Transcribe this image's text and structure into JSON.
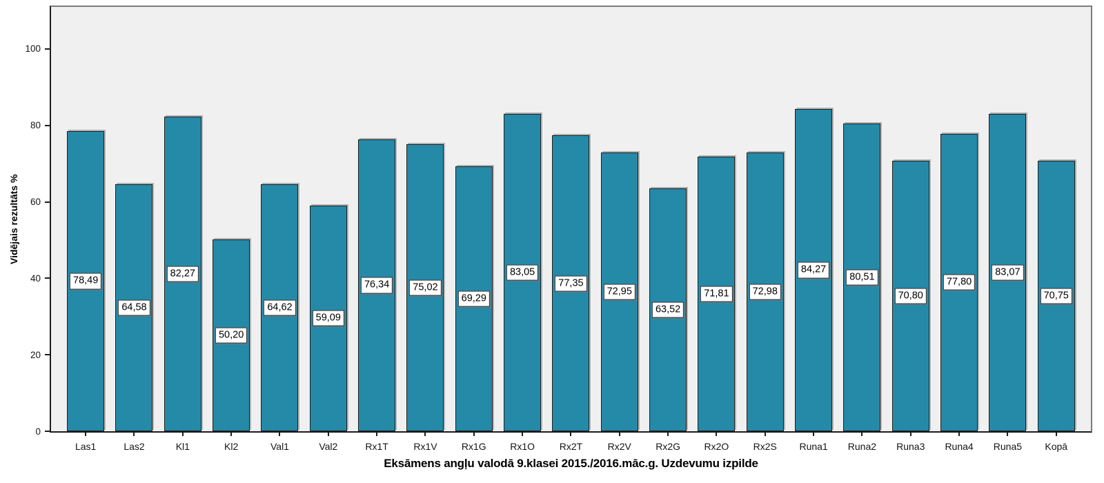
{
  "chart_data": {
    "type": "bar",
    "title": "",
    "xlabel": "Eksāmens angļu valodā 9.klasei 2015./2016.māc.g. Uzdevumu izpilde",
    "ylabel": "Vidējais rezultāts %",
    "categories": [
      "Las1",
      "Las2",
      "Kl1",
      "Kl2",
      "Val1",
      "Val2",
      "Rx1T",
      "Rx1V",
      "Rx1G",
      "Rx1O",
      "Rx2T",
      "Rx2V",
      "Rx2G",
      "Rx2O",
      "Rx2S",
      "Runa1",
      "Runa2",
      "Runa3",
      "Runa4",
      "Runa5",
      "Kopā"
    ],
    "values": [
      78.49,
      64.58,
      82.27,
      50.2,
      64.62,
      59.09,
      76.34,
      75.02,
      69.29,
      83.05,
      77.35,
      72.95,
      63.52,
      71.81,
      72.98,
      84.27,
      80.51,
      70.8,
      77.8,
      83.07,
      70.75
    ],
    "value_labels": [
      "78,49",
      "64,58",
      "82,27",
      "50,20",
      "64,62",
      "59,09",
      "76,34",
      "75,02",
      "69,29",
      "83,05",
      "77,35",
      "72,95",
      "63,52",
      "71,81",
      "72,98",
      "84,27",
      "80,51",
      "70,80",
      "77,80",
      "83,07",
      "70,75"
    ],
    "ytick_values": [
      0,
      20,
      40,
      60,
      80,
      100
    ],
    "ytick_labels": [
      "0",
      "20",
      "40",
      "60",
      "80",
      "100"
    ],
    "ylim": [
      0,
      111
    ],
    "grid": false,
    "legend": "none",
    "bar_color": "#2589A8",
    "plot_bg": "#F0F0F0",
    "frame_color": "#7A7A7A",
    "axis_color": "#1C1C1C"
  }
}
